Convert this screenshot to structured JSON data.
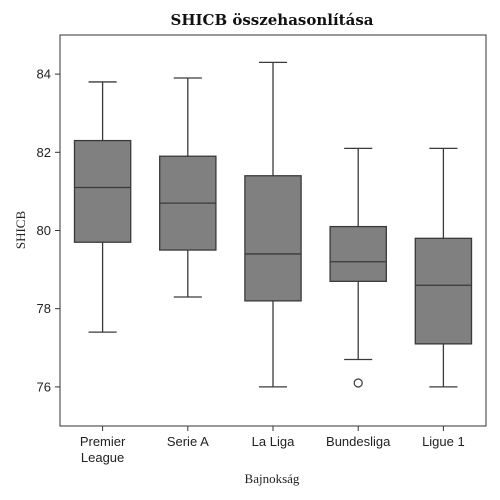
{
  "chart_data": {
    "type": "box",
    "title": "SHICB összehasonlítása",
    "xlabel": "Bajnokság",
    "ylabel": "SHICB",
    "ylim": [
      75,
      85
    ],
    "yticks": [
      76,
      78,
      80,
      82,
      84
    ],
    "grid": false,
    "box_color": "#808080",
    "line_color": "#3a3a3a",
    "categories": [
      [
        "Premier",
        "League"
      ],
      [
        "Serie A"
      ],
      [
        "La Liga"
      ],
      [
        "Bundesliga"
      ],
      [
        "Ligue 1"
      ]
    ],
    "boxes": [
      {
        "whisker_low": 77.4,
        "q1": 79.7,
        "median": 81.1,
        "q3": 82.3,
        "whisker_high": 83.8,
        "outliers": []
      },
      {
        "whisker_low": 78.3,
        "q1": 79.5,
        "median": 80.7,
        "q3": 81.9,
        "whisker_high": 83.9,
        "outliers": []
      },
      {
        "whisker_low": 76.0,
        "q1": 78.2,
        "median": 79.4,
        "q3": 81.4,
        "whisker_high": 84.3,
        "outliers": []
      },
      {
        "whisker_low": 76.7,
        "q1": 78.7,
        "median": 79.2,
        "q3": 80.1,
        "whisker_high": 82.1,
        "outliers": [
          76.1
        ]
      },
      {
        "whisker_low": 76.0,
        "q1": 77.1,
        "median": 78.6,
        "q3": 79.8,
        "whisker_high": 82.1,
        "outliers": []
      }
    ]
  }
}
